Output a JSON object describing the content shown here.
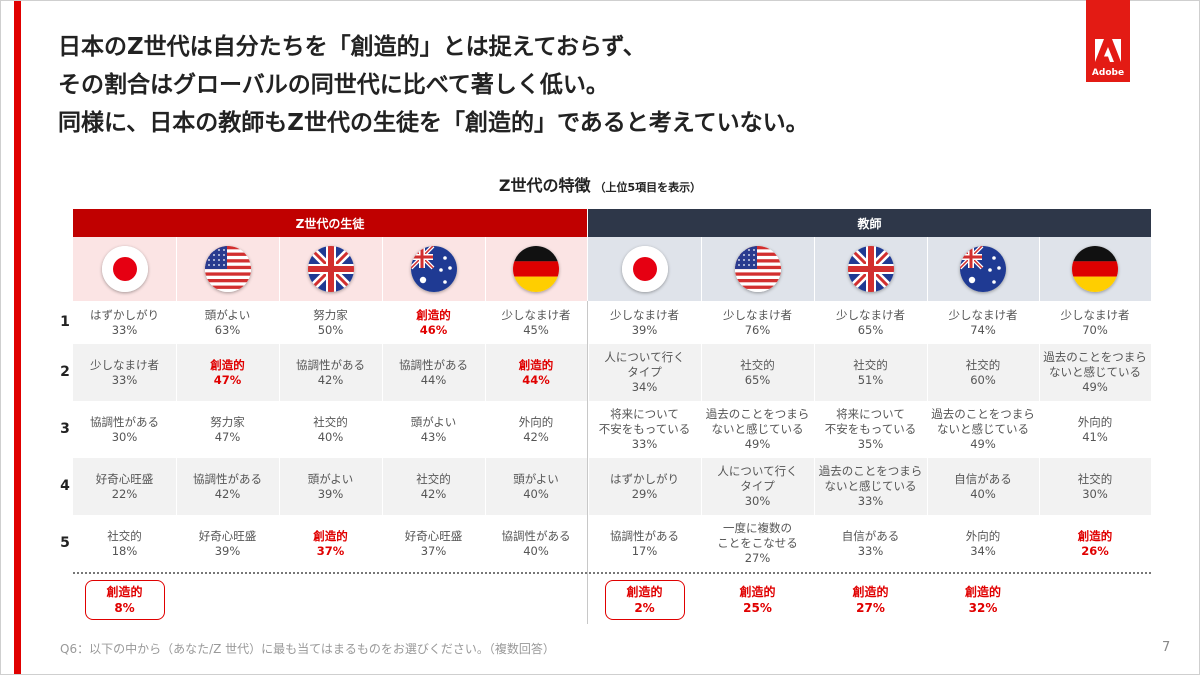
{
  "headline": [
    "日本のZ世代は自分たちを「創造的」とは捉えておらず、",
    "その割合はグローバルの同世代に比べて著しく低い。",
    "同様に、日本の教師もZ世代の生徒を「創造的」であると考えていない。"
  ],
  "logo": {
    "text": "Adobe"
  },
  "chart_title": {
    "main": "Z世代の特徴",
    "sub": "（上位5項目を表示）"
  },
  "groups": {
    "students": "Z世代の生徒",
    "teachers": "教師"
  },
  "countries": [
    {
      "flag": "japan-flag-icon"
    },
    {
      "flag": "usa-flag-icon"
    },
    {
      "flag": "uk-flag-icon"
    },
    {
      "flag": "australia-flag-icon"
    },
    {
      "flag": "germany-flag-icon"
    },
    {
      "flag": "japan-flag-icon"
    },
    {
      "flag": "usa-flag-icon"
    },
    {
      "flag": "uk-flag-icon"
    },
    {
      "flag": "australia-flag-icon"
    },
    {
      "flag": "germany-flag-icon"
    }
  ],
  "rows": [
    {
      "rank": "1",
      "cells": [
        {
          "label": "はずかしがり",
          "value": "33%"
        },
        {
          "label": "頭がよい",
          "value": "63%"
        },
        {
          "label": "努力家",
          "value": "50%"
        },
        {
          "label": "創造的",
          "value": "46%",
          "highlight": true
        },
        {
          "label": "少しなまけ者",
          "value": "45%"
        },
        {
          "label": "少しなまけ者",
          "value": "39%"
        },
        {
          "label": "少しなまけ者",
          "value": "76%"
        },
        {
          "label": "少しなまけ者",
          "value": "65%"
        },
        {
          "label": "少しなまけ者",
          "value": "74%"
        },
        {
          "label": "少しなまけ者",
          "value": "70%"
        }
      ]
    },
    {
      "rank": "2",
      "cells": [
        {
          "label": "少しなまけ者",
          "value": "33%"
        },
        {
          "label": "創造的",
          "value": "47%",
          "highlight": true
        },
        {
          "label": "協調性がある",
          "value": "42%"
        },
        {
          "label": "協調性がある",
          "value": "44%"
        },
        {
          "label": "創造的",
          "value": "44%",
          "highlight": true
        },
        {
          "label": "人について行く\nタイプ",
          "value": "34%"
        },
        {
          "label": "社交的",
          "value": "65%"
        },
        {
          "label": "社交的",
          "value": "51%"
        },
        {
          "label": "社交的",
          "value": "60%"
        },
        {
          "label": "過去のことをつまら\nないと感じている",
          "value": "49%"
        }
      ]
    },
    {
      "rank": "3",
      "cells": [
        {
          "label": "協調性がある",
          "value": "30%"
        },
        {
          "label": "努力家",
          "value": "47%"
        },
        {
          "label": "社交的",
          "value": "40%"
        },
        {
          "label": "頭がよい",
          "value": "43%"
        },
        {
          "label": "外向的",
          "value": "42%"
        },
        {
          "label": "将来について\n不安をもっている",
          "value": "33%"
        },
        {
          "label": "過去のことをつまら\nないと感じている",
          "value": "49%"
        },
        {
          "label": "将来について\n不安をもっている",
          "value": "35%"
        },
        {
          "label": "過去のことをつまら\nないと感じている",
          "value": "49%"
        },
        {
          "label": "外向的",
          "value": "41%"
        }
      ]
    },
    {
      "rank": "4",
      "cells": [
        {
          "label": "好奇心旺盛",
          "value": "22%"
        },
        {
          "label": "協調性がある",
          "value": "42%"
        },
        {
          "label": "頭がよい",
          "value": "39%"
        },
        {
          "label": "社交的",
          "value": "42%"
        },
        {
          "label": "頭がよい",
          "value": "40%"
        },
        {
          "label": "はずかしがり",
          "value": "29%"
        },
        {
          "label": "人について行く\nタイプ",
          "value": "30%"
        },
        {
          "label": "過去のことをつまら\nないと感じている",
          "value": "33%"
        },
        {
          "label": "自信がある",
          "value": "40%"
        },
        {
          "label": "社交的",
          "value": "30%"
        }
      ]
    },
    {
      "rank": "5",
      "cells": [
        {
          "label": "社交的",
          "value": "18%"
        },
        {
          "label": "好奇心旺盛",
          "value": "39%"
        },
        {
          "label": "創造的",
          "value": "37%",
          "highlight": true
        },
        {
          "label": "好奇心旺盛",
          "value": "37%"
        },
        {
          "label": "協調性がある",
          "value": "40%"
        },
        {
          "label": "協調性がある",
          "value": "17%"
        },
        {
          "label": "一度に複数の\nことをこなせる",
          "value": "27%"
        },
        {
          "label": "自信がある",
          "value": "33%"
        },
        {
          "label": "外向的",
          "value": "34%"
        },
        {
          "label": "創造的",
          "value": "26%",
          "highlight": true
        }
      ]
    }
  ],
  "summary": [
    {
      "label": "創造的",
      "value": "8%",
      "boxed": true
    },
    null,
    null,
    null,
    null,
    {
      "label": "創造的",
      "value": "2%",
      "boxed": true
    },
    {
      "label": "創造的",
      "value": "25%"
    },
    {
      "label": "創造的",
      "value": "27%"
    },
    {
      "label": "創造的",
      "value": "32%"
    },
    null
  ],
  "footnote": "Q6：以下の中から（あなた/Z 世代）に最も当てはまるものをお選びください。（複数回答）",
  "page_number": "7",
  "colors": {
    "accent": "#e00000",
    "student_band": "#c00000",
    "teacher_band": "#2e3749"
  }
}
